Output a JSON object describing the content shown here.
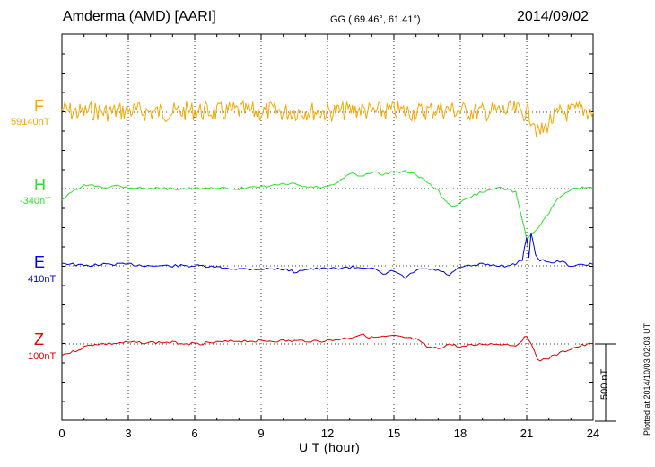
{
  "header": {
    "title": "Amderma (AMD)  [AARI]",
    "coords": "GG ( 69.46°,  61.41°)",
    "date": "2014/09/02"
  },
  "side_note": "Plotted at 2014/10/03 02:03 UT",
  "scale_bar": {
    "label": "500 nT",
    "value_nT": 500
  },
  "chart_data": {
    "type": "line",
    "xlabel": "U T (hour)",
    "xlim": [
      0,
      24
    ],
    "xticks": [
      0,
      3,
      6,
      9,
      12,
      15,
      18,
      21,
      24
    ],
    "grid": true,
    "series": [
      {
        "name": "F",
        "baseline_label": "59140nT",
        "color": "#f5a800",
        "x": [
          0,
          0.5,
          1,
          1.5,
          2,
          3,
          4,
          5,
          6,
          7,
          8,
          9,
          9.5,
          10,
          11,
          12,
          13,
          13.5,
          14,
          15,
          16,
          17,
          18,
          19,
          20,
          20.5,
          21,
          21.3,
          21.5,
          21.8,
          22,
          22.5,
          23,
          23.5,
          24
        ],
        "y": [
          20,
          0,
          0,
          10,
          0,
          10,
          0,
          0,
          10,
          0,
          10,
          0,
          10,
          0,
          10,
          0,
          10,
          20,
          0,
          10,
          0,
          20,
          10,
          0,
          10,
          10,
          0,
          -40,
          -140,
          -110,
          -60,
          -10,
          0,
          20,
          0
        ]
      },
      {
        "name": "H",
        "baseline_label": "-340nT",
        "color": "#2ee02e",
        "x": [
          0,
          0.3,
          0.7,
          1,
          1.5,
          2,
          2.5,
          3,
          4,
          5,
          6,
          7,
          8,
          9,
          10,
          10.5,
          11,
          11.5,
          12,
          12.5,
          13,
          13.5,
          14,
          14.5,
          15,
          15.5,
          16,
          16.5,
          17,
          17.3,
          17.6,
          18,
          18.5,
          19,
          19.5,
          20,
          20.5,
          20.8,
          21,
          21.2,
          21.5,
          22,
          22.5,
          23,
          23.5,
          24
        ],
        "y": [
          -70,
          -40,
          0,
          20,
          20,
          10,
          20,
          10,
          0,
          0,
          0,
          0,
          0,
          10,
          30,
          30,
          10,
          10,
          10,
          40,
          100,
          80,
          110,
          90,
          110,
          110,
          90,
          40,
          -10,
          -80,
          -120,
          -90,
          -50,
          -20,
          0,
          0,
          -20,
          -200,
          -330,
          -300,
          -250,
          -160,
          -50,
          -10,
          10,
          0
        ]
      },
      {
        "name": "E",
        "baseline_label": "410nT",
        "color": "#0000e0",
        "x": [
          0,
          0.5,
          1,
          2,
          3,
          4,
          5,
          6,
          7,
          8,
          9,
          10,
          10.5,
          11,
          12,
          13,
          14,
          14.5,
          15,
          15.5,
          16,
          16.5,
          17,
          17.5,
          18,
          19,
          20,
          20.5,
          20.8,
          21,
          21.1,
          21.2,
          21.4,
          21.6,
          22,
          22.5,
          23,
          24
        ],
        "y": [
          20,
          10,
          0,
          10,
          10,
          0,
          0,
          0,
          -10,
          -20,
          -20,
          -20,
          -40,
          -20,
          -20,
          -10,
          -10,
          -60,
          -30,
          -80,
          -30,
          -20,
          -30,
          -60,
          -10,
          10,
          0,
          10,
          40,
          190,
          60,
          210,
          70,
          40,
          20,
          30,
          0,
          10
        ]
      },
      {
        "name": "Z",
        "baseline_label": "100nT",
        "color": "#e00000",
        "x": [
          0,
          0.5,
          1,
          1.5,
          2,
          3,
          4,
          5,
          6,
          7,
          8,
          9,
          10,
          11,
          12,
          13,
          13.5,
          14,
          15,
          16,
          16.5,
          17,
          17.5,
          18,
          19,
          20,
          20.5,
          20.8,
          21,
          21.2,
          21.5,
          22,
          22.5,
          23,
          23.5,
          24
        ],
        "y": [
          -70,
          -50,
          -20,
          0,
          0,
          10,
          10,
          10,
          0,
          10,
          20,
          20,
          20,
          20,
          20,
          40,
          60,
          40,
          50,
          30,
          -20,
          -30,
          0,
          -20,
          0,
          0,
          -10,
          30,
          50,
          10,
          -110,
          -90,
          -60,
          -30,
          -10,
          0
        ]
      }
    ]
  }
}
